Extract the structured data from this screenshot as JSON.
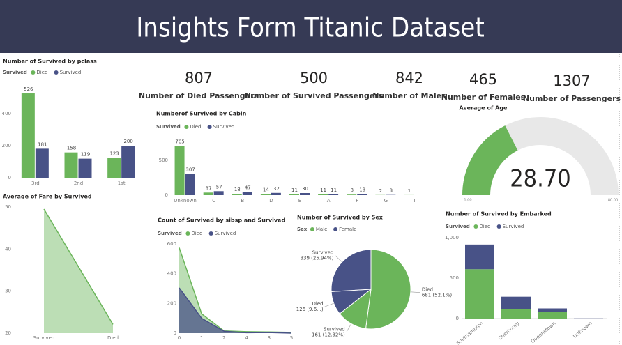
{
  "header": {
    "title": "Insights Form Titanic Dataset"
  },
  "cards": [
    {
      "value": 807,
      "label": "Number of Died Passengers"
    },
    {
      "value": 500,
      "label": "Number of Survived Passengers"
    },
    {
      "value": 842,
      "label": "Number of Males"
    },
    {
      "value": 465,
      "label": "Number of Females"
    },
    {
      "value": 1307,
      "label": "Number of Passengers"
    }
  ],
  "chart_data": [
    {
      "type": "bar",
      "title": "Number of Survived by pclass",
      "legend_title": "Survived",
      "categories": [
        "3rd",
        "2nd",
        "1st"
      ],
      "series": [
        {
          "name": "Died",
          "color": "#6bb55a",
          "values": [
            526,
            158,
            123
          ]
        },
        {
          "name": "Survived",
          "color": "#485287",
          "values": [
            181,
            119,
            200
          ]
        }
      ],
      "ylim": [
        0,
        600
      ],
      "yticks": [
        0,
        200,
        400
      ]
    },
    {
      "type": "area",
      "title": "Average of Fare by Survived",
      "categories": [
        "Survived",
        "Died"
      ],
      "values": [
        49.5,
        22.1
      ],
      "color": "#6bb55a",
      "ylim": [
        20,
        50
      ],
      "yticks": [
        20,
        30,
        40,
        50
      ]
    },
    {
      "type": "bar",
      "title": "Numberof Survived by Cabin",
      "legend_title": "Survived",
      "categories": [
        "Unknown",
        "C",
        "B",
        "D",
        "E",
        "A",
        "F",
        "G",
        "T"
      ],
      "series": [
        {
          "name": "Died",
          "color": "#6bb55a",
          "values": [
            705,
            37,
            18,
            14,
            11,
            11,
            8,
            2,
            1
          ]
        },
        {
          "name": "Survived",
          "color": "#485287",
          "values": [
            307,
            57,
            47,
            32,
            30,
            11,
            13,
            3,
            null
          ]
        }
      ],
      "ylim": [
        0,
        750
      ],
      "yticks": [
        0,
        500
      ]
    },
    {
      "type": "area",
      "title": "Count of Survived by sibsp and Survived",
      "legend_title": "Survived",
      "categories": [
        "0",
        "1",
        "2",
        "4",
        "3",
        "5"
      ],
      "series": [
        {
          "name": "Died",
          "color": "#6bb55a",
          "values": [
            575,
            130,
            15,
            10,
            8,
            5
          ]
        },
        {
          "name": "Survived",
          "color": "#485287",
          "values": [
            305,
            100,
            13,
            3,
            4,
            0
          ]
        }
      ],
      "ylim": [
        0,
        600
      ],
      "yticks": [
        0,
        200,
        400,
        600
      ]
    },
    {
      "type": "pie",
      "title": "Number of Survived by Sex",
      "legend_title": "Sex",
      "legend": [
        {
          "name": "Male",
          "color": "#6bb55a"
        },
        {
          "name": "Female",
          "color": "#485287"
        }
      ],
      "categories": [
        "Died",
        "Survived",
        "Died",
        "Survived"
      ],
      "values": [
        681,
        161,
        126,
        339
      ],
      "value_labels": [
        "681 (52.1%)",
        "161 (12.32%)",
        "126 (9.6...)",
        "339 (25.94%)"
      ],
      "colors": [
        "#6bb55a",
        "#6bb55a",
        "#485287",
        "#485287"
      ]
    },
    {
      "type": "stacked_bar",
      "title": "Number of Survived by Embarked",
      "legend_title": "Survived",
      "categories": [
        "Southampton",
        "Cherbourg",
        "Queenstown",
        "Unknown"
      ],
      "series": [
        {
          "name": "Died",
          "color": "#6bb55a",
          "values": [
            610,
            120,
            80,
            0
          ]
        },
        {
          "name": "Survived",
          "color": "#485287",
          "values": [
            305,
            150,
            45,
            2
          ]
        }
      ],
      "ylim": [
        0,
        1000
      ],
      "yticks": [
        0,
        500,
        {
          "value": 1000,
          "label": "1,000"
        }
      ]
    },
    {
      "type": "gauge",
      "title": "Average of Age",
      "value": 28.7,
      "value_label": "28.70",
      "range": [
        {
          "value": 1,
          "label": "1.00"
        },
        {
          "value": 80,
          "label": "80.00"
        }
      ],
      "color": "#6bb55a",
      "track_color": "#e8e8e8"
    }
  ]
}
